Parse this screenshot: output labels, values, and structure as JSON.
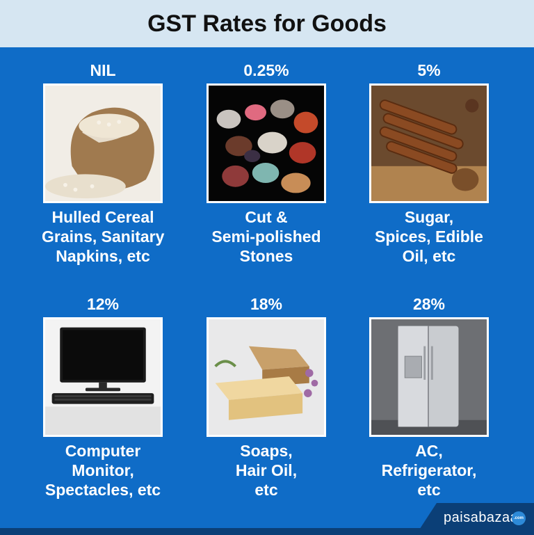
{
  "title": "GST Rates for Goods",
  "colors": {
    "background": "#0f6cc7",
    "header": "#d6e6f2",
    "footer": "#0b3f77"
  },
  "tiles": [
    {
      "rate": "NIL",
      "caption": [
        "Hulled Cereal",
        "Grains, Sanitary",
        "Napkins, etc"
      ],
      "image": "cereal-grains-sack"
    },
    {
      "rate": "0.25%",
      "caption": [
        "Cut &",
        "Semi-polished",
        "Stones"
      ],
      "image": "polished-stones"
    },
    {
      "rate": "5%",
      "caption": [
        "Sugar,",
        "Spices, Edible",
        "Oil, etc"
      ],
      "image": "cinnamon-spices"
    },
    {
      "rate": "12%",
      "caption": [
        "Computer",
        "Monitor,",
        "Spectacles, etc"
      ],
      "image": "computer-monitor"
    },
    {
      "rate": "18%",
      "caption": [
        "Soaps,",
        "Hair Oil,",
        "etc"
      ],
      "image": "soap-bars"
    },
    {
      "rate": "28%",
      "caption": [
        "AC,",
        "Refrigerator,",
        "etc"
      ],
      "image": "refrigerator"
    }
  ],
  "logo": {
    "text": "paisabazaar",
    "badge": ".com"
  }
}
